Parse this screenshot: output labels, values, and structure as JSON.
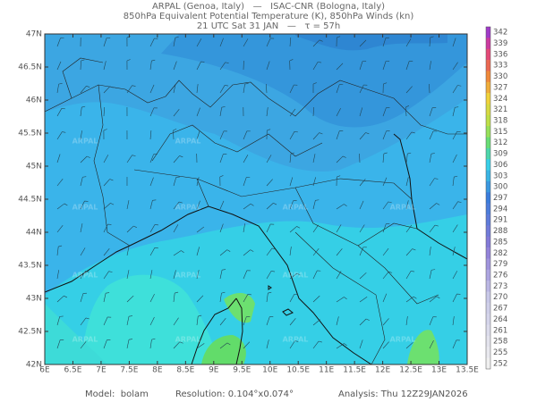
{
  "header": {
    "line1": "ARPAL (Genoa, Italy)   —   ISAC-CNR (Bologna, Italy)",
    "line2": "850hPa Equivalent Potential Temperature (K), 850hPa Winds (kn)",
    "line3": "21 UTC Sat 31 JAN   —   τ = 57h"
  },
  "map": {
    "lat_labels": [
      "47N",
      "46.5N",
      "46N",
      "45.5N",
      "45N",
      "44.5N",
      "44N",
      "43.5N",
      "43N",
      "42.5N",
      "42N"
    ],
    "lon_labels": [
      "6E",
      "6.5E",
      "7E",
      "7.5E",
      "8E",
      "8.5E",
      "9E",
      "9.5E",
      "10E",
      "10.5E",
      "11E",
      "11.5E",
      "12E",
      "12.5E",
      "13E",
      "13.5E"
    ],
    "watermark": "ARPAL"
  },
  "colorbar": {
    "labels": [
      342,
      339,
      336,
      333,
      330,
      327,
      324,
      321,
      318,
      315,
      312,
      309,
      306,
      303,
      300,
      297,
      294,
      291,
      288,
      285,
      282,
      279,
      276,
      273,
      270,
      267,
      264,
      261,
      258,
      255,
      252
    ]
  },
  "footer": {
    "model": "Model:  bolam",
    "resolution": "Resolution: 0.104°x0.074°",
    "analysis": "Analysis: Thu 12Z29JAN2026"
  }
}
